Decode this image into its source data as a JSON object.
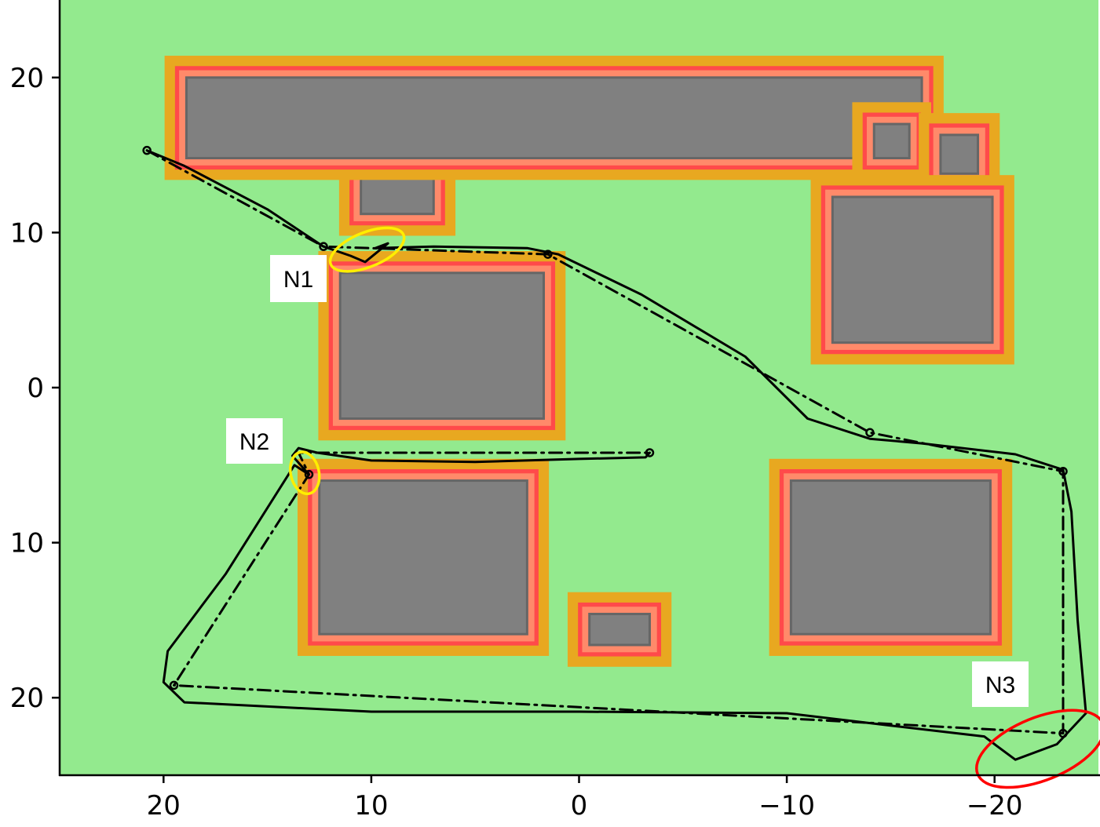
{
  "chart_data": {
    "type": "scatter",
    "title": "",
    "xlabel": "",
    "ylabel": "",
    "x_inverted": true,
    "xlim": [
      25,
      -25
    ],
    "ylim": [
      -25,
      25
    ],
    "x_ticks": [
      20,
      10,
      0,
      -10,
      -20
    ],
    "x_tick_labels": [
      "20",
      "10",
      "0",
      "−10",
      "−20"
    ],
    "y_ticks": [
      20,
      10,
      0,
      -10,
      -20
    ],
    "y_tick_labels": [
      "20",
      "10",
      "0",
      "10",
      "20"
    ],
    "grid": false,
    "colors": {
      "free_space": "#93ea8e",
      "obstacle": "#808080",
      "obstacle_border": "#666666",
      "inflation_inner": "#ff4a4a",
      "inflation_inner_soft": "#ff8a6a",
      "inflation_outer": "#e8a820",
      "path": "#000000",
      "marker_yellow": "#ffee00",
      "marker_red": "#ff0000"
    },
    "obstacles": [
      {
        "x1": 10.5,
        "x2": 7,
        "y1": 11.2,
        "y2": 19.6
      },
      {
        "x1": 18.9,
        "x2": -16.5,
        "y1": 14.8,
        "y2": 20.0
      },
      {
        "x1": -14.2,
        "x2": -15.9,
        "y1": 14.8,
        "y2": 17.0
      },
      {
        "x1": -17.4,
        "x2": -19.2,
        "y1": 13.8,
        "y2": 16.3
      },
      {
        "x1": -12.2,
        "x2": -19.9,
        "y1": 2.9,
        "y2": 12.3
      },
      {
        "x1": 11.5,
        "x2": 1.7,
        "y1": -2.0,
        "y2": 7.4
      },
      {
        "x1": 12.5,
        "x2": 2.5,
        "y1": -15.9,
        "y2": -6.0
      },
      {
        "x1": -0.5,
        "x2": -3.4,
        "y1": -16.6,
        "y2": -14.6
      },
      {
        "x1": -10.2,
        "x2": -19.8,
        "y1": -15.9,
        "y2": -6.0
      }
    ],
    "series": [
      {
        "style": "dashdot",
        "x": [
          20.8,
          12.3,
          1.5,
          -14.0,
          -23.3,
          -23.3,
          19.5,
          13.0,
          13.5,
          -3.4
        ],
        "y": [
          15.3,
          9.1,
          8.6,
          -2.9,
          -5.4,
          -22.3,
          -19.2,
          -5.6,
          -4.2,
          -4.2
        ]
      },
      {
        "style": "solid",
        "x": [
          20.8,
          19.0,
          15.0,
          12.3,
          11.0,
          10.3,
          9.2,
          9.8,
          7.0,
          2.5,
          1.0,
          -3.0,
          -8.0,
          -11.0,
          -14.0,
          -16.5,
          -21.0,
          -23.3,
          -23.7,
          -24.0,
          -24.4,
          -23.0,
          -21.0,
          -20.0,
          -19.5,
          -15.0,
          -10.0,
          0.0,
          10.0,
          19.0,
          20.0,
          19.8,
          17.0,
          13.7,
          13.0,
          13.8,
          13.5,
          12.6,
          10.0,
          5.0,
          0.0,
          -3.2,
          -3.4
        ],
        "y": [
          15.3,
          14.3,
          11.5,
          9.1,
          8.5,
          8.1,
          9.3,
          9.0,
          9.1,
          9.0,
          8.6,
          6.0,
          2.0,
          -2.0,
          -3.3,
          -3.6,
          -4.3,
          -5.3,
          -8.0,
          -15.0,
          -21.0,
          -23.0,
          -24.0,
          -23.0,
          -22.5,
          -21.8,
          -21.0,
          -20.9,
          -20.9,
          -20.3,
          -19.0,
          -17.0,
          -12.0,
          -5.0,
          -5.6,
          -4.4,
          -3.9,
          -4.2,
          -4.7,
          -4.8,
          -4.6,
          -4.5,
          -4.2
        ]
      }
    ],
    "waypoints": {
      "x": [
        20.8,
        12.3,
        1.5,
        -14.0,
        -23.3,
        -23.3,
        19.5,
        13.0,
        -3.4
      ],
      "y": [
        15.3,
        9.1,
        8.6,
        -2.9,
        -5.4,
        -22.3,
        -19.2,
        -5.6,
        -4.2
      ]
    },
    "annotations": [
      {
        "text": "N1",
        "x": 10.2,
        "y": 8.9,
        "color": "#ffee00",
        "ring": "yellow"
      },
      {
        "text": "N2",
        "x": 13.2,
        "y": -5.5,
        "color": "#ffee00",
        "ring": "yellow"
      },
      {
        "text": "N3",
        "x": -22.2,
        "y": -23.3,
        "color": "#ff0000",
        "ring": "red"
      }
    ]
  }
}
